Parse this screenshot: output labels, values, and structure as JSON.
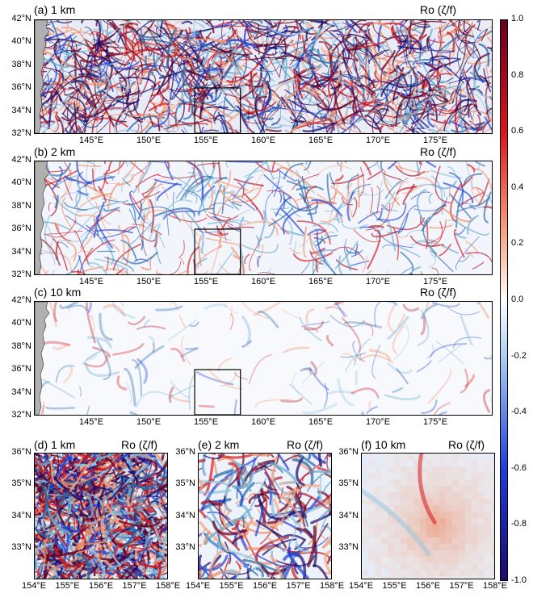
{
  "variable_label": "Ro (ζ/f)",
  "panels": {
    "a": {
      "label": "(a) 1 km",
      "resolution_km": 1
    },
    "b": {
      "label": "(b) 2 km",
      "resolution_km": 2
    },
    "c": {
      "label": "(c) 10 km",
      "resolution_km": 10
    },
    "d": {
      "label": "(d) 1 km",
      "resolution_km": 1
    },
    "e": {
      "label": "(e) 2 km",
      "resolution_km": 2
    },
    "f": {
      "label": "(f) 10 km",
      "resolution_km": 10
    }
  },
  "wide_lat_ticks": [
    "42°N",
    "40°N",
    "38°N",
    "36°N",
    "34°N",
    "32°N"
  ],
  "wide_lon_ticks": [
    "145°E",
    "150°E",
    "155°E",
    "160°E",
    "165°E",
    "170°E",
    "175°E"
  ],
  "zoom_lat_ticks": [
    "36°N",
    "35°N",
    "34°N",
    "33°N"
  ],
  "zoom_lon_ticks": [
    "154°E",
    "155°E",
    "156°E",
    "157°E",
    "158°E"
  ],
  "colorbar": {
    "ticks": [
      "1.0",
      "0.8",
      "0.6",
      "0.4",
      "0.2",
      "0.0",
      "-0.2",
      "-0.4",
      "-0.6",
      "-0.8",
      "-1.0"
    ],
    "range": [
      -1.0,
      1.0
    ],
    "colors": {
      "max": "#67001f",
      "pos": "#d6191e",
      "mid": "#ffffff",
      "neg": "#1f3fd6",
      "min": "#1a0a6b"
    }
  },
  "wide_extent": {
    "lon": [
      140,
      180
    ],
    "lat": [
      32,
      42
    ]
  },
  "zoom_box": {
    "lon": [
      154,
      158
    ],
    "lat": [
      32,
      36
    ]
  },
  "land_color": "#b0b0b0"
}
